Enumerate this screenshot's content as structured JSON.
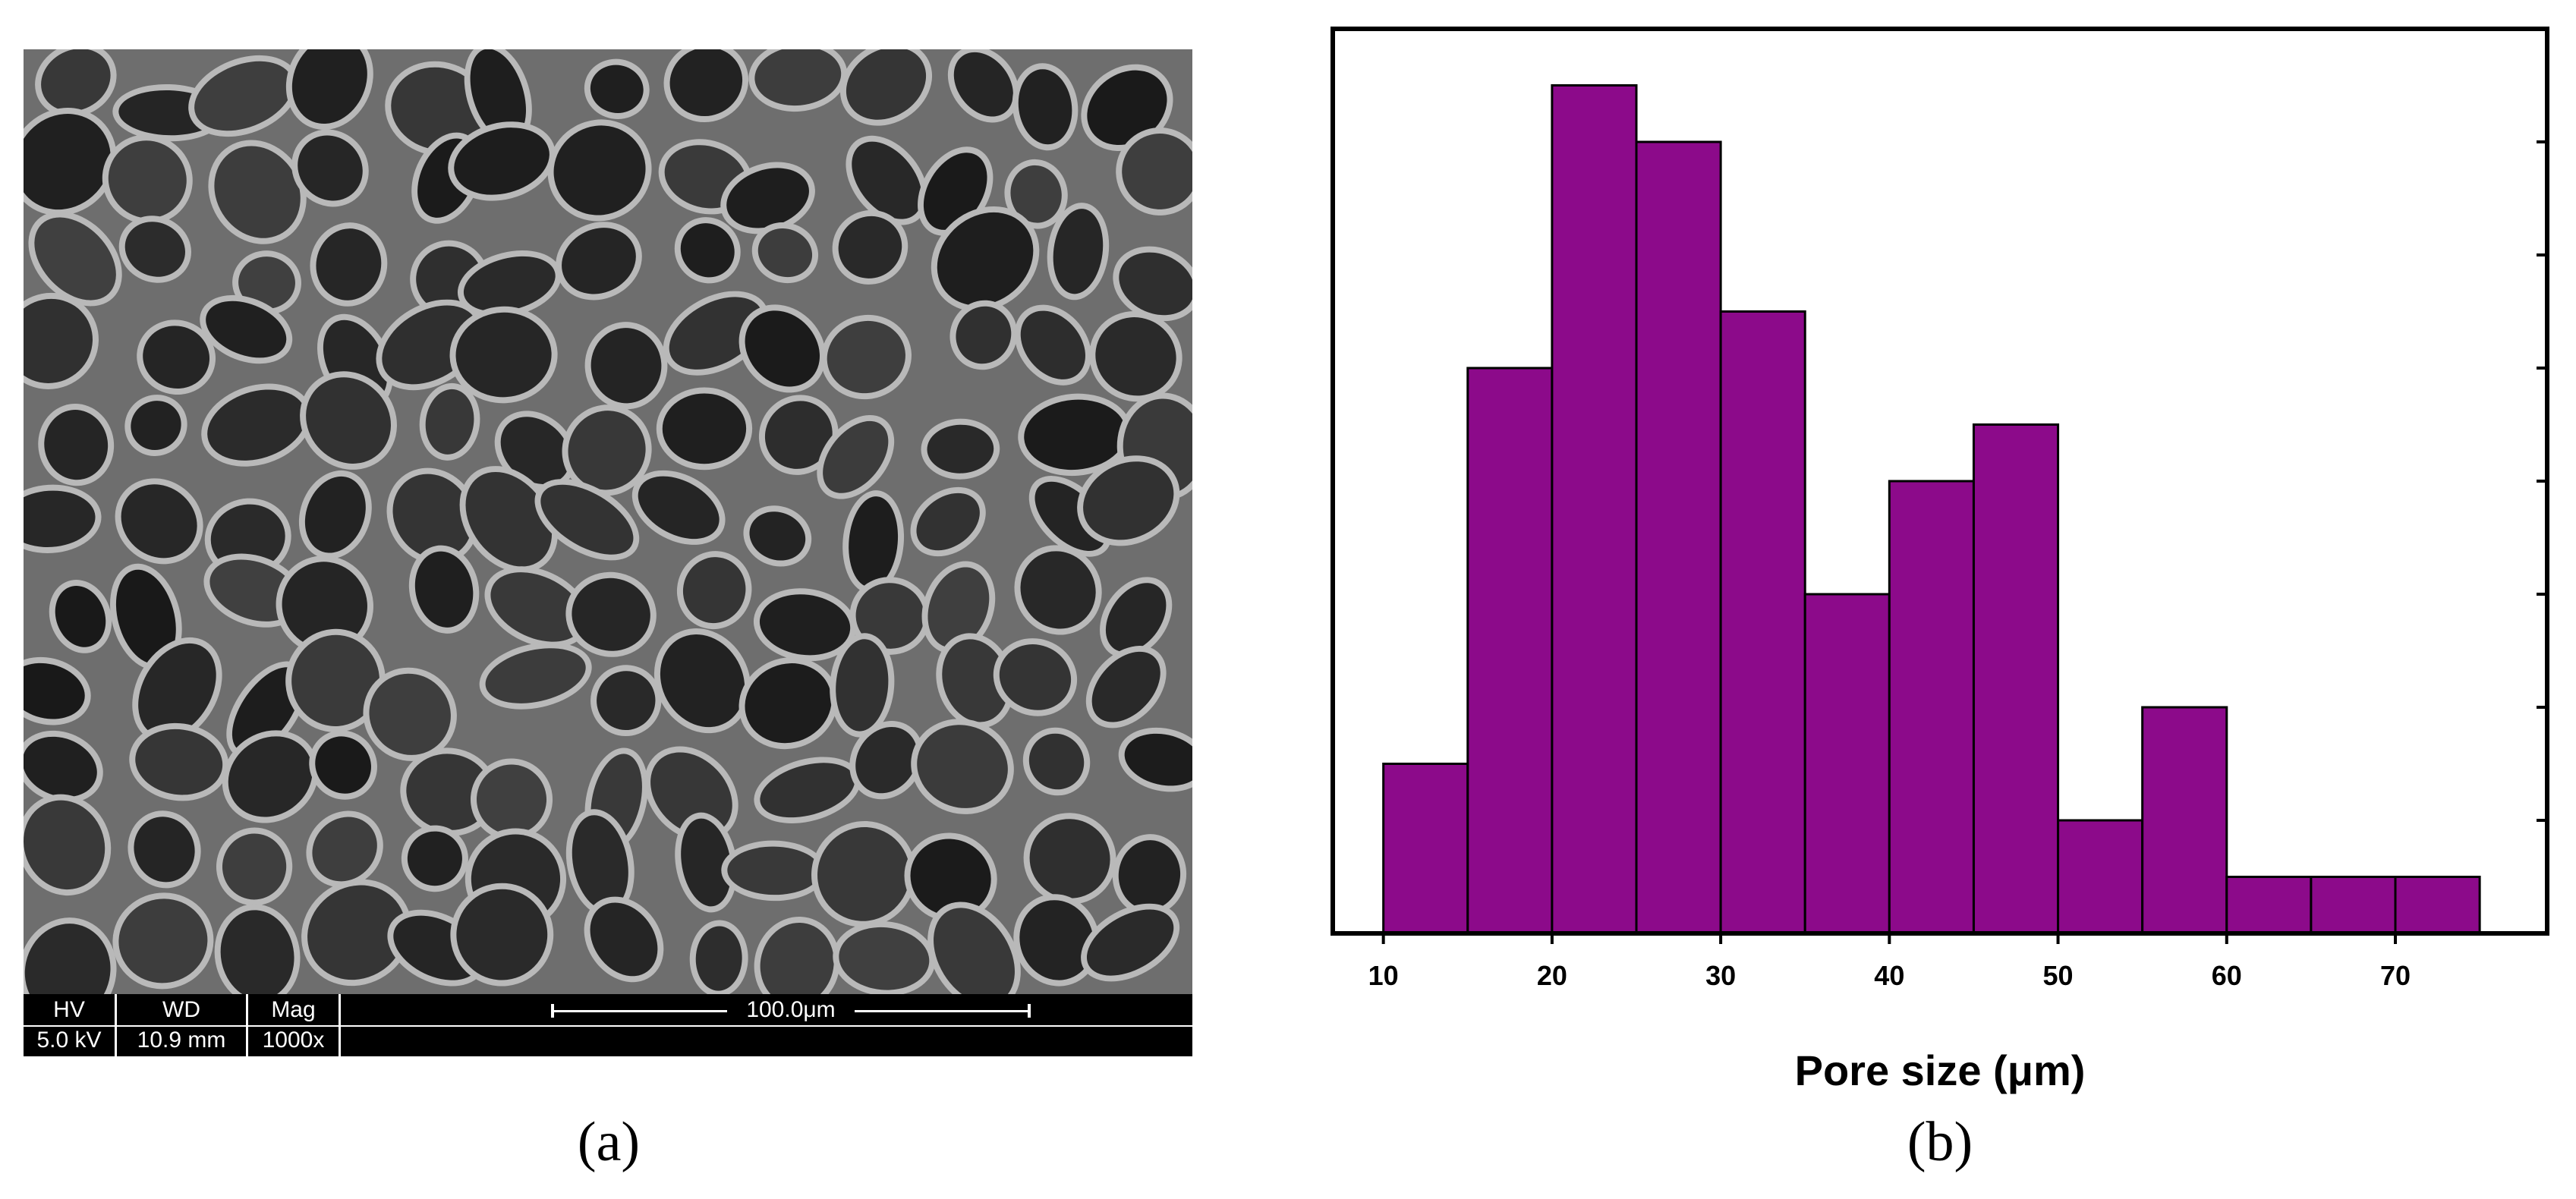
{
  "panels": {
    "a": {
      "label": "(a)",
      "sem_info": {
        "hv_label": "HV",
        "hv_value": "5.0 kV",
        "wd_label": "WD",
        "wd_value": "10.9 mm",
        "mag_label": "Mag",
        "mag_value": "1000x",
        "scale_label": "100.0μm"
      }
    },
    "b": {
      "label": "(b)"
    }
  },
  "chart_data": {
    "type": "bar",
    "title": "",
    "xlabel": "Pore size (μm)",
    "ylabel": "",
    "bin_edges": [
      10,
      15,
      20,
      25,
      30,
      35,
      40,
      45,
      50,
      55,
      60,
      65,
      70,
      75
    ],
    "values": [
      3,
      10,
      15,
      14,
      11,
      6,
      8,
      9,
      2,
      4,
      1,
      1,
      1
    ],
    "xlim": [
      7,
      79
    ],
    "ylim": [
      0,
      16
    ],
    "x_ticks": [
      10,
      20,
      30,
      40,
      50,
      60,
      70
    ],
    "y_tick_count": 8,
    "bar_color": "#8c0a8a",
    "grid": false
  }
}
